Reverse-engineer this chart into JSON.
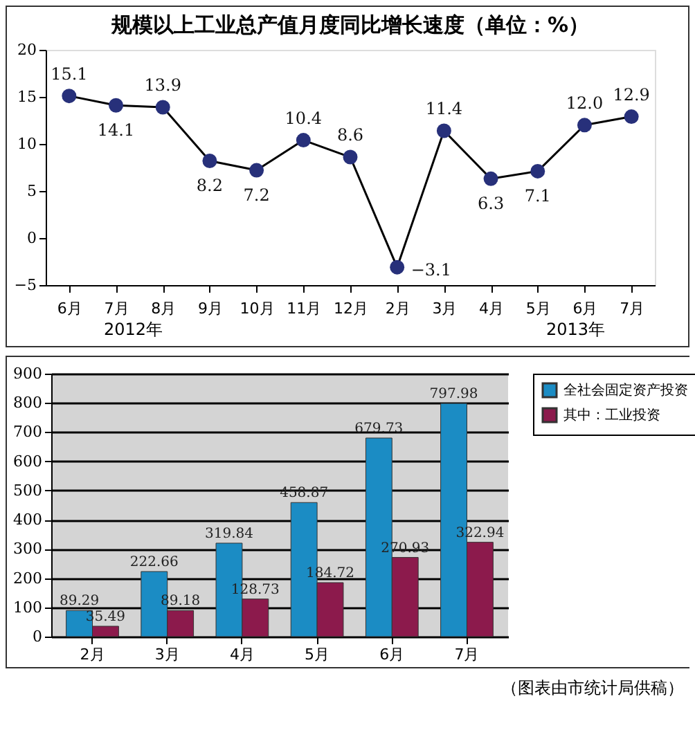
{
  "chart_data": [
    {
      "type": "line",
      "title": "规模以上工业总产值月度同比增长速度（单位：%）",
      "categories": [
        "6月",
        "7月",
        "8月",
        "9月",
        "10月",
        "11月",
        "12月",
        "2月",
        "3月",
        "4月",
        "5月",
        "6月",
        "7月"
      ],
      "series": [
        {
          "color": "#27307a",
          "values": [
            15.1,
            14.1,
            13.9,
            8.2,
            7.2,
            10.4,
            8.6,
            -3.1,
            11.4,
            6.3,
            7.1,
            12.0,
            12.9
          ],
          "value_labels": [
            "15.1",
            "14.1",
            "13.9",
            "8.2",
            "7.2",
            "10.4",
            "8.6",
            "−3.1",
            "11.4",
            "6.3",
            "7.1",
            "12.0",
            "12.9"
          ]
        }
      ],
      "ylim": [
        -5,
        20
      ],
      "yticks": [
        -5,
        0,
        5,
        10,
        15,
        20
      ],
      "marker": "circle",
      "annotations": [
        "2012年",
        "2013年"
      ]
    },
    {
      "type": "bar",
      "categories": [
        "2月",
        "3月",
        "4月",
        "5月",
        "6月",
        "7月"
      ],
      "series": [
        {
          "name": "全社会固定资产投资",
          "color": "#1b8cc4",
          "values": [
            89.29,
            222.66,
            319.84,
            458.87,
            679.73,
            797.98
          ]
        },
        {
          "name": "其中：工业投资",
          "color": "#8c1a4c",
          "values": [
            35.49,
            89.18,
            128.73,
            184.72,
            270.93,
            322.94
          ]
        }
      ],
      "ylim": [
        0,
        900
      ],
      "yticks": [
        0,
        100,
        200,
        300,
        400,
        500,
        600,
        700,
        800,
        900
      ],
      "grid": "y",
      "legend": "right",
      "data_labels": true,
      "annotations": [
        "（图表由市统计局供稿）"
      ]
    }
  ]
}
